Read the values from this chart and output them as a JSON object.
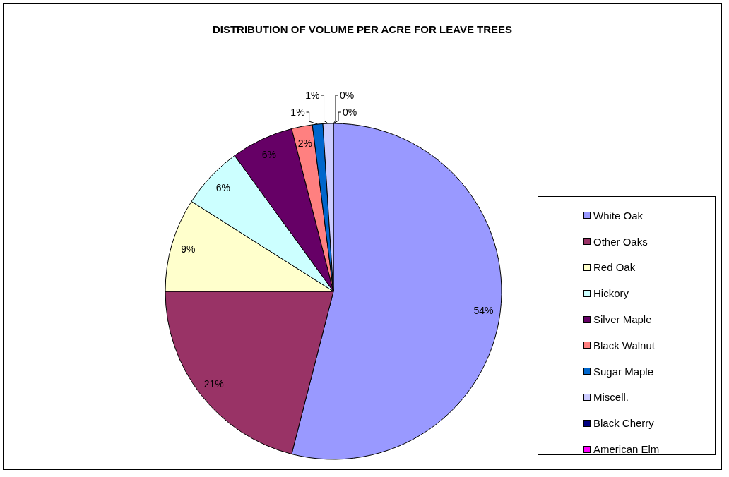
{
  "chart_data": {
    "type": "pie",
    "title": "DISTRIBUTION OF VOLUME PER ACRE FOR LEAVE TREES",
    "categories": [
      "White Oak",
      "Other Oaks",
      "Red Oak",
      "Hickory",
      "Silver Maple",
      "Black Walnut",
      "Sugar Maple",
      "Miscell.",
      "Black Cherry",
      "American Elm"
    ],
    "values": [
      54,
      21,
      9,
      6,
      6,
      2,
      1,
      1,
      0,
      0
    ],
    "colors": [
      "#9999ff",
      "#993366",
      "#ffffcc",
      "#ccffff",
      "#660066",
      "#ff8080",
      "#0066cc",
      "#ccccff",
      "#000080",
      "#ff00ff"
    ],
    "value_labels": [
      "54%",
      "21%",
      "9%",
      "6%",
      "6%",
      "2%",
      "1%",
      "1%",
      "0%",
      "0%"
    ],
    "legend": "right"
  }
}
